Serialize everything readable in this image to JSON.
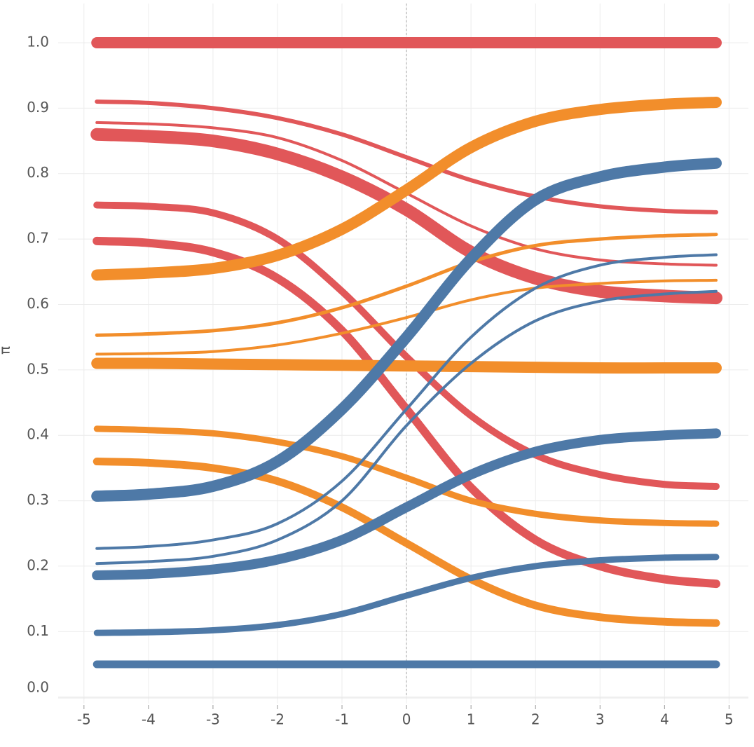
{
  "chart_data": {
    "type": "line",
    "ylabel": "π",
    "x": [
      -4.8,
      -4,
      -3,
      -2,
      -1,
      0,
      1,
      2,
      3,
      4,
      4.8
    ],
    "xlim": [
      -5.4,
      5.3
    ],
    "ylim": [
      -0.01,
      1.06
    ],
    "xticks": [
      -5,
      -4,
      -3,
      -2,
      -1,
      0,
      1,
      2,
      3,
      4,
      5
    ],
    "yticks": [
      {
        "value": 0,
        "label": "0.0"
      },
      0.1,
      0.2,
      0.3,
      0.4,
      0.5,
      0.6,
      0.7,
      0.8,
      0.9,
      {
        "value": 1,
        "label": "1.0"
      }
    ],
    "grid": true,
    "vline": 0,
    "series": [
      {
        "color": "#e15759",
        "width": 16,
        "values": [
          1,
          1,
          1,
          1,
          1,
          1,
          1,
          1,
          1,
          1,
          1
        ]
      },
      {
        "color": "#e15759",
        "width": 6,
        "values": [
          0.91,
          0.908,
          0.9,
          0.885,
          0.86,
          0.825,
          0.79,
          0.765,
          0.75,
          0.743,
          0.741
        ]
      },
      {
        "color": "#e15759",
        "width": 4,
        "values": [
          0.878,
          0.876,
          0.87,
          0.855,
          0.82,
          0.77,
          0.72,
          0.685,
          0.668,
          0.662,
          0.66
        ]
      },
      {
        "color": "#e15759",
        "width": 18,
        "values": [
          0.86,
          0.857,
          0.85,
          0.83,
          0.795,
          0.745,
          0.68,
          0.64,
          0.62,
          0.613,
          0.61
        ]
      },
      {
        "color": "#e15759",
        "width": 10,
        "values": [
          0.752,
          0.75,
          0.74,
          0.7,
          0.62,
          0.52,
          0.43,
          0.37,
          0.34,
          0.325,
          0.322
        ]
      },
      {
        "color": "#e15759",
        "width": 12,
        "values": [
          0.697,
          0.694,
          0.68,
          0.64,
          0.56,
          0.44,
          0.32,
          0.24,
          0.2,
          0.18,
          0.173
        ]
      },
      {
        "color": "#f28e2b",
        "width": 16,
        "values": [
          0.645,
          0.648,
          0.655,
          0.675,
          0.715,
          0.775,
          0.84,
          0.88,
          0.898,
          0.906,
          0.909
        ]
      },
      {
        "color": "#f28e2b",
        "width": 5,
        "values": [
          0.553,
          0.555,
          0.56,
          0.572,
          0.595,
          0.628,
          0.665,
          0.69,
          0.7,
          0.705,
          0.707
        ]
      },
      {
        "color": "#f28e2b",
        "width": 4,
        "values": [
          0.524,
          0.525,
          0.528,
          0.538,
          0.556,
          0.58,
          0.607,
          0.625,
          0.632,
          0.636,
          0.637
        ]
      },
      {
        "color": "#f28e2b",
        "width": 16,
        "values": [
          0.51,
          0.51,
          0.509,
          0.508,
          0.507,
          0.506,
          0.505,
          0.504,
          0.503,
          0.503,
          0.503
        ]
      },
      {
        "color": "#f28e2b",
        "width": 9,
        "values": [
          0.41,
          0.408,
          0.403,
          0.39,
          0.368,
          0.335,
          0.3,
          0.28,
          0.27,
          0.266,
          0.265
        ]
      },
      {
        "color": "#f28e2b",
        "width": 11,
        "values": [
          0.36,
          0.358,
          0.35,
          0.33,
          0.29,
          0.235,
          0.18,
          0.14,
          0.122,
          0.115,
          0.113
        ]
      },
      {
        "color": "#4e79a7",
        "width": 16,
        "values": [
          0.307,
          0.31,
          0.322,
          0.36,
          0.44,
          0.55,
          0.67,
          0.76,
          0.795,
          0.81,
          0.816
        ]
      },
      {
        "color": "#4e79a7",
        "width": 4,
        "values": [
          0.227,
          0.23,
          0.24,
          0.265,
          0.33,
          0.44,
          0.55,
          0.625,
          0.66,
          0.672,
          0.676
        ]
      },
      {
        "color": "#4e79a7",
        "width": 4,
        "values": [
          0.204,
          0.207,
          0.215,
          0.24,
          0.3,
          0.415,
          0.51,
          0.575,
          0.605,
          0.616,
          0.62
        ]
      },
      {
        "color": "#4e79a7",
        "width": 14,
        "values": [
          0.186,
          0.188,
          0.195,
          0.21,
          0.24,
          0.29,
          0.34,
          0.375,
          0.393,
          0.4,
          0.403
        ]
      },
      {
        "color": "#4e79a7",
        "width": 9,
        "values": [
          0.098,
          0.099,
          0.102,
          0.11,
          0.127,
          0.155,
          0.182,
          0.2,
          0.209,
          0.213,
          0.214
        ]
      },
      {
        "color": "#4e79a7",
        "width": 11,
        "values": [
          0.05,
          0.05,
          0.05,
          0.05,
          0.05,
          0.05,
          0.05,
          0.05,
          0.05,
          0.05,
          0.05
        ]
      }
    ]
  }
}
